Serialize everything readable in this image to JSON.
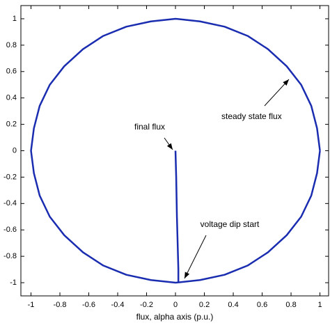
{
  "chart_data": {
    "type": "line",
    "xlabel": "flux, alpha axis (p.u.)",
    "xlim": [
      -1.07,
      1.06
    ],
    "ylim": [
      -1.1,
      1.1
    ],
    "xticks": [
      -1,
      -0.8,
      -0.6,
      -0.4,
      -0.2,
      0,
      0.2,
      0.4,
      0.6,
      0.8,
      1
    ],
    "yticks": [
      -1,
      -0.8,
      -0.6,
      -0.4,
      -0.2,
      0,
      0.2,
      0.4,
      0.6,
      0.8,
      1
    ],
    "grid": false,
    "annotations": [
      "steady state flux",
      "final flux",
      "voltage dip start"
    ],
    "series": [
      {
        "color": "#1a2db0",
        "x": [
          1,
          0.98,
          0.94,
          0.87,
          0.77,
          0.64,
          0.5,
          0.34,
          0.17,
          0,
          -0.17,
          -0.34,
          -0.5,
          -0.64,
          -0.77,
          -0.87,
          -0.94,
          -0.98,
          -1,
          -0.98,
          -0.94,
          -0.87,
          -0.77,
          -0.64,
          -0.5,
          -0.34,
          -0.17,
          0,
          0.17,
          0.34,
          0.5,
          0.64,
          0.77,
          0.87,
          0.94,
          0.98,
          1
        ],
        "values": [
          0,
          0.17,
          0.34,
          0.5,
          0.64,
          0.77,
          0.87,
          0.94,
          0.98,
          1,
          0.98,
          0.94,
          0.87,
          0.77,
          0.64,
          0.5,
          0.34,
          0.17,
          0,
          -0.17,
          -0.34,
          -0.5,
          -0.64,
          -0.77,
          -0.87,
          -0.94,
          -0.98,
          -1,
          -0.98,
          -0.94,
          -0.87,
          -0.77,
          -0.64,
          -0.5,
          -0.34,
          -0.17,
          0
        ]
      },
      {
        "color": "#1a2db0",
        "x": [
          0.02,
          0.02,
          0.01,
          0.005,
          0
        ],
        "values": [
          -1,
          -0.9,
          -0.5,
          -0.2,
          0
        ]
      }
    ]
  }
}
